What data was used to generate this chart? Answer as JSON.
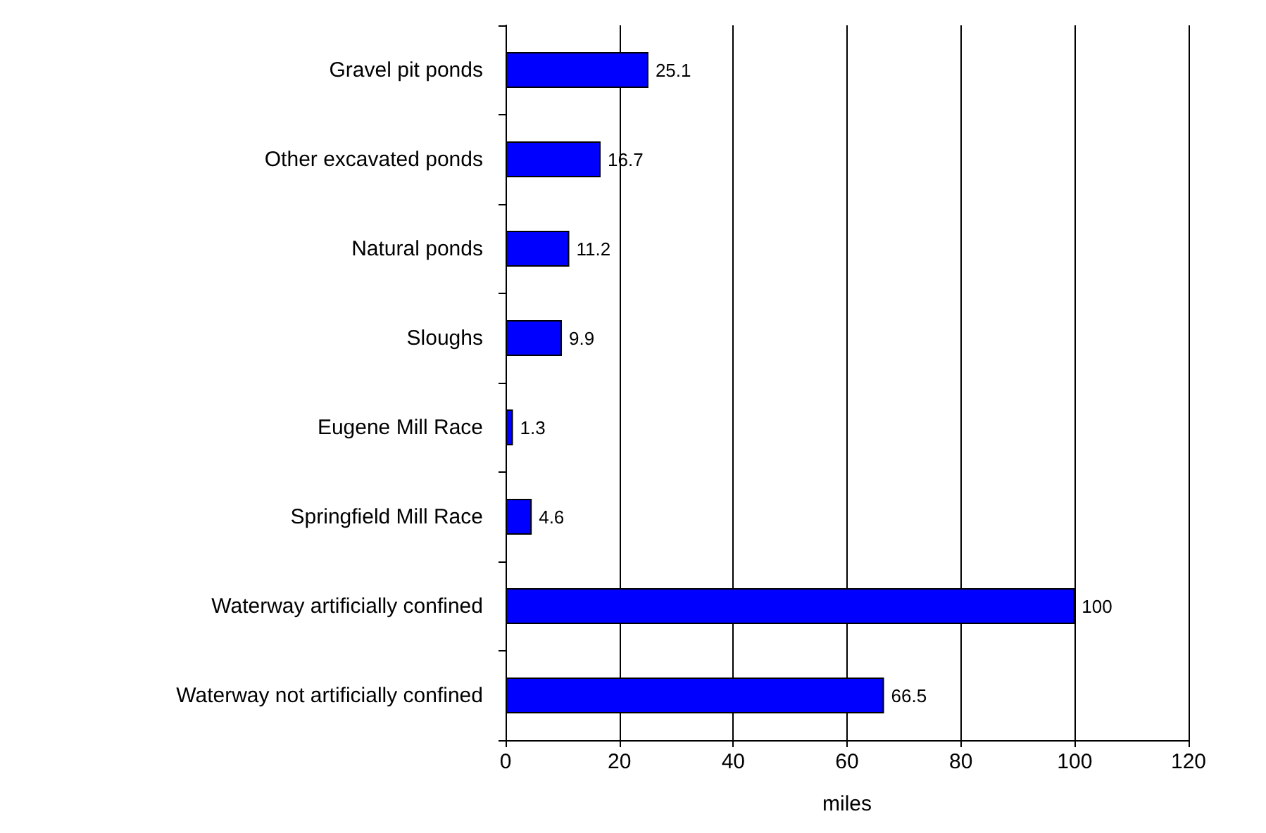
{
  "chart_data": {
    "type": "bar",
    "orientation": "horizontal",
    "xlabel": "miles",
    "categories": [
      "Gravel pit ponds",
      "Other excavated ponds",
      "Natural ponds",
      "Sloughs",
      "Eugene Mill Race",
      "Springfield Mill Race",
      "Waterway artificially confined",
      "Waterway not artificially confined"
    ],
    "values": [
      25.1,
      16.7,
      11.2,
      9.9,
      1.3,
      4.6,
      100,
      66.5
    ],
    "color": "#0000ff",
    "xlim": [
      0,
      120
    ],
    "xticks": [
      0,
      20,
      40,
      60,
      80,
      100,
      120
    ],
    "grid": "x",
    "data_labels": true
  }
}
